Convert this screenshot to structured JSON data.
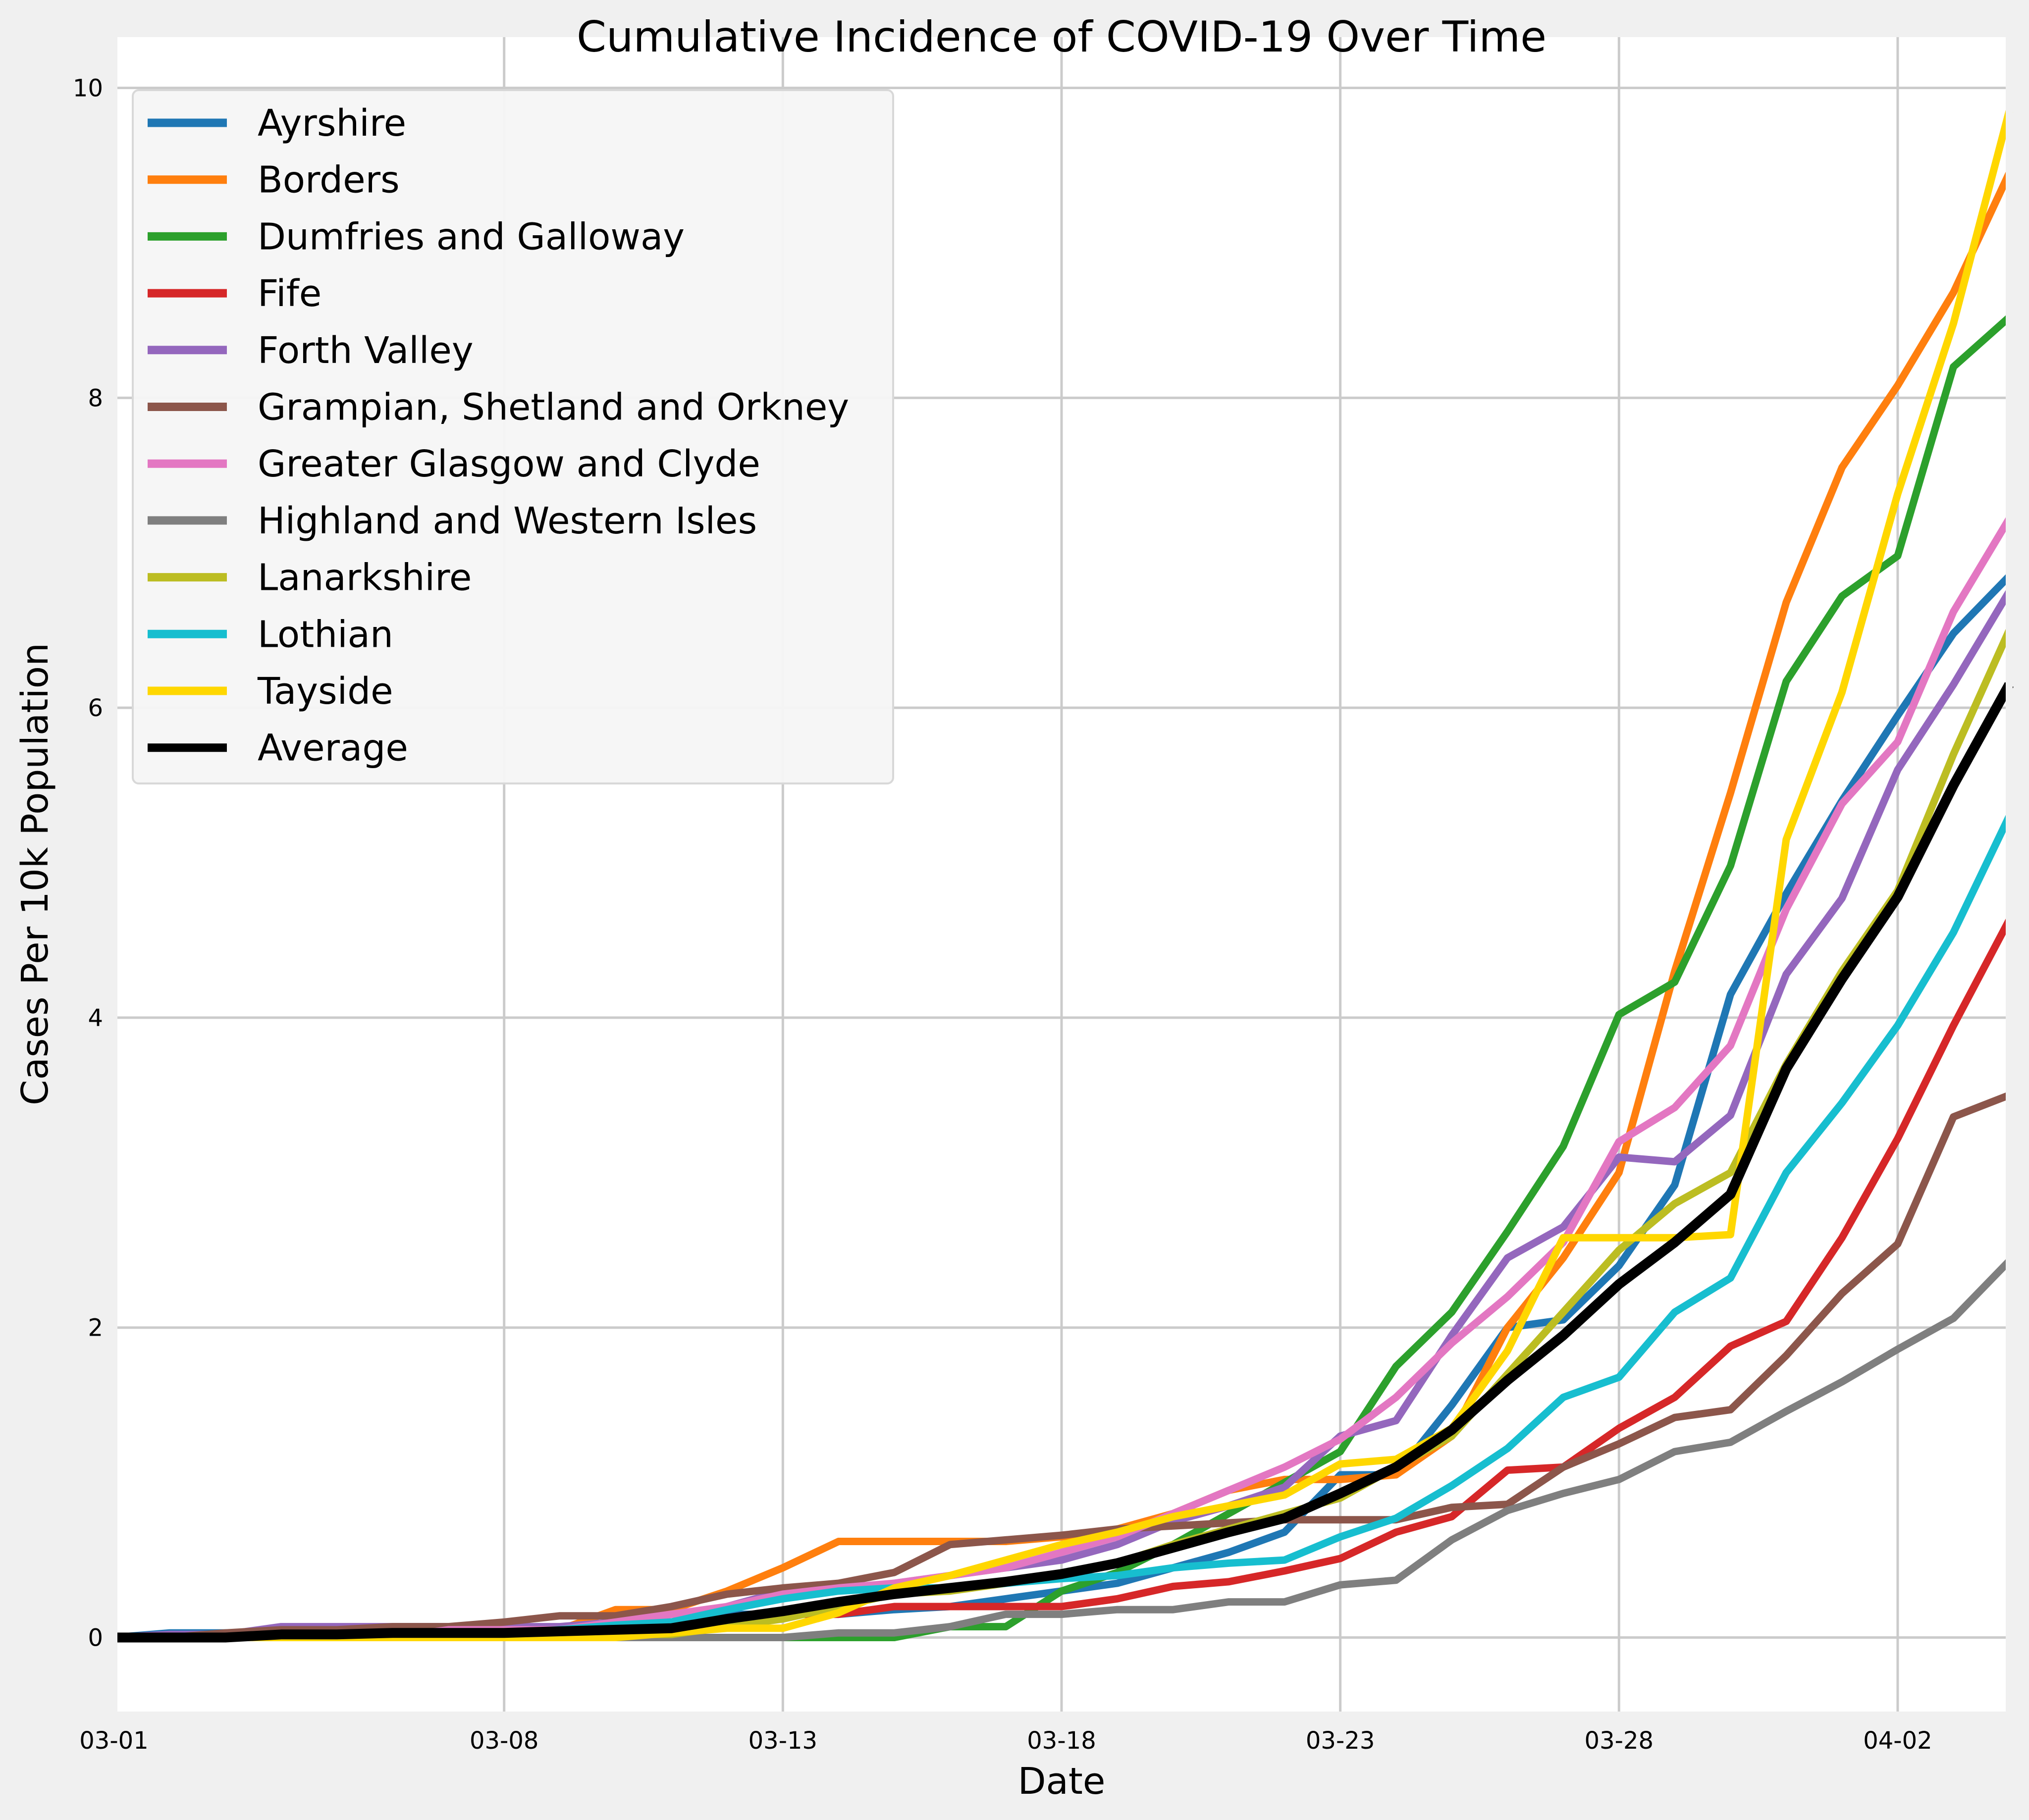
{
  "chart_data": {
    "type": "line",
    "title": "Cumulative Incidence of COVID-19 Over Time",
    "xlabel": "Date",
    "ylabel": "Cases Per 10k Population",
    "x": [
      "03-01",
      "03-02",
      "03-03",
      "03-04",
      "03-05",
      "03-06",
      "03-07",
      "03-08",
      "03-09",
      "03-10",
      "03-11",
      "03-12",
      "03-13",
      "03-14",
      "03-15",
      "03-16",
      "03-17",
      "03-18",
      "03-19",
      "03-20",
      "03-21",
      "03-22",
      "03-23",
      "03-24",
      "03-25",
      "03-26",
      "03-27",
      "03-28",
      "03-29",
      "03-30",
      "03-31",
      "04-01",
      "04-02",
      "04-03",
      "04-04"
    ],
    "xticks": [
      "03-01",
      "03-08",
      "03-13",
      "03-18",
      "03-23",
      "03-28",
      "04-02"
    ],
    "yticks": [
      0,
      2,
      4,
      6,
      8,
      10
    ],
    "ylim": [
      -0.5,
      10.35
    ],
    "grid": true,
    "legend_position": "upper-left",
    "series": [
      {
        "name": "Ayrshire",
        "color": "#1f77b4",
        "values": [
          0,
          0.03,
          0.03,
          0.03,
          0.03,
          0.03,
          0.03,
          0.05,
          0.05,
          0.1,
          0.1,
          0.15,
          0.15,
          0.15,
          0.18,
          0.2,
          0.25,
          0.3,
          0.35,
          0.45,
          0.55,
          0.68,
          1.05,
          1.05,
          1.5,
          2.0,
          2.05,
          2.4,
          2.92,
          4.15,
          4.8,
          5.4,
          5.95,
          6.48,
          6.85
        ]
      },
      {
        "name": "Borders",
        "color": "#ff7f0e",
        "values": [
          0,
          0,
          0,
          0,
          0,
          0,
          0,
          0.02,
          0.05,
          0.18,
          0.18,
          0.3,
          0.45,
          0.62,
          0.62,
          0.62,
          0.62,
          0.65,
          0.7,
          0.8,
          0.95,
          1.02,
          1.02,
          1.05,
          1.3,
          2.0,
          2.45,
          3.0,
          4.3,
          5.45,
          6.68,
          7.55,
          8.08,
          8.68,
          9.45
        ]
      },
      {
        "name": "Dumfries and Galloway",
        "color": "#2ca02c",
        "values": [
          0,
          0,
          0,
          0,
          0,
          0,
          0,
          0,
          0,
          0,
          0,
          0,
          0,
          0,
          0,
          0.07,
          0.07,
          0.3,
          0.42,
          0.6,
          0.8,
          1.0,
          1.2,
          1.75,
          2.1,
          2.62,
          3.17,
          4.02,
          4.23,
          4.98,
          6.17,
          6.72,
          6.98,
          8.2,
          8.52
        ]
      },
      {
        "name": "Fife",
        "color": "#d62728",
        "values": [
          0,
          0,
          0,
          0,
          0,
          0,
          0,
          0,
          0,
          0.05,
          0.05,
          0.1,
          0.15,
          0.15,
          0.2,
          0.2,
          0.2,
          0.2,
          0.25,
          0.33,
          0.36,
          0.43,
          0.51,
          0.68,
          0.78,
          1.08,
          1.1,
          1.35,
          1.55,
          1.88,
          2.04,
          2.58,
          3.22,
          3.95,
          4.63
        ]
      },
      {
        "name": "Forth Valley",
        "color": "#9467bd",
        "values": [
          0,
          0.02,
          0.02,
          0.07,
          0.07,
          0.07,
          0.07,
          0.07,
          0.07,
          0.1,
          0.1,
          0.2,
          0.3,
          0.3,
          0.35,
          0.4,
          0.45,
          0.5,
          0.6,
          0.75,
          0.85,
          0.97,
          1.3,
          1.4,
          1.95,
          2.45,
          2.65,
          3.1,
          3.07,
          3.37,
          4.28,
          4.77,
          5.6,
          6.15,
          6.75
        ]
      },
      {
        "name": "Grampian, Shetland and Orkney",
        "color": "#8c564b",
        "values": [
          0,
          0,
          0.03,
          0.05,
          0.05,
          0.07,
          0.07,
          0.1,
          0.14,
          0.14,
          0.2,
          0.28,
          0.32,
          0.35,
          0.42,
          0.6,
          0.63,
          0.66,
          0.7,
          0.72,
          0.74,
          0.76,
          0.76,
          0.76,
          0.84,
          0.86,
          1.1,
          1.25,
          1.42,
          1.47,
          1.82,
          2.22,
          2.54,
          3.36,
          3.5
        ]
      },
      {
        "name": "Greater Glasgow and Clyde",
        "color": "#e377c2",
        "values": [
          0,
          0,
          0,
          0,
          0,
          0,
          0.05,
          0.05,
          0.05,
          0.1,
          0.15,
          0.2,
          0.28,
          0.32,
          0.35,
          0.4,
          0.45,
          0.55,
          0.65,
          0.8,
          0.95,
          1.1,
          1.28,
          1.55,
          1.9,
          2.2,
          2.55,
          3.2,
          3.42,
          3.82,
          4.7,
          5.38,
          5.78,
          6.62,
          7.22
        ]
      },
      {
        "name": "Highland and Western Isles",
        "color": "#7f7f7f",
        "values": [
          0,
          0,
          0,
          0,
          0,
          0,
          0,
          0,
          0,
          0,
          0,
          0,
          0,
          0.03,
          0.03,
          0.07,
          0.15,
          0.15,
          0.18,
          0.18,
          0.23,
          0.23,
          0.34,
          0.37,
          0.63,
          0.82,
          0.93,
          1.02,
          1.2,
          1.26,
          1.46,
          1.65,
          1.86,
          2.06,
          2.43
        ]
      },
      {
        "name": "Lanarkshire",
        "color": "#bcbd22",
        "values": [
          0,
          0,
          0,
          0,
          0,
          0,
          0,
          0,
          0,
          0.02,
          0.02,
          0.07,
          0.12,
          0.2,
          0.28,
          0.3,
          0.35,
          0.4,
          0.48,
          0.6,
          0.7,
          0.8,
          0.9,
          1.1,
          1.3,
          1.7,
          2.1,
          2.5,
          2.8,
          3.0,
          3.7,
          4.3,
          4.82,
          5.7,
          6.5
        ]
      },
      {
        "name": "Lothian",
        "color": "#17becf",
        "values": [
          0,
          0,
          0,
          0,
          0,
          0,
          0.03,
          0.03,
          0.05,
          0.08,
          0.1,
          0.18,
          0.25,
          0.3,
          0.32,
          0.32,
          0.35,
          0.38,
          0.4,
          0.45,
          0.48,
          0.5,
          0.65,
          0.77,
          0.98,
          1.22,
          1.55,
          1.68,
          2.1,
          2.32,
          3.0,
          3.45,
          3.95,
          4.55,
          5.3
        ]
      },
      {
        "name": "Tayside",
        "color": "#ffd700",
        "values": [
          0,
          0,
          0,
          0,
          0,
          0,
          0,
          0,
          0,
          0,
          0.03,
          0.06,
          0.06,
          0.16,
          0.32,
          0.4,
          0.5,
          0.6,
          0.68,
          0.78,
          0.85,
          0.92,
          1.12,
          1.15,
          1.35,
          1.85,
          2.58,
          2.58,
          2.58,
          2.6,
          5.15,
          6.1,
          7.38,
          8.48,
          9.85
        ]
      },
      {
        "name": "Average",
        "color": "#000000",
        "values": [
          0,
          0,
          0,
          0.02,
          0.02,
          0.03,
          0.03,
          0.03,
          0.04,
          0.05,
          0.06,
          0.12,
          0.17,
          0.23,
          0.28,
          0.32,
          0.36,
          0.41,
          0.48,
          0.58,
          0.68,
          0.77,
          0.93,
          1.1,
          1.34,
          1.66,
          1.95,
          2.28,
          2.55,
          2.86,
          3.67,
          4.25,
          4.78,
          5.5,
          6.15
        ]
      }
    ]
  }
}
